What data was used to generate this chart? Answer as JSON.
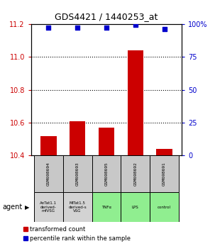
{
  "title": "GDS4421 / 1440253_at",
  "samples": [
    "GSM698694",
    "GSM698693",
    "GSM698695",
    "GSM698692",
    "GSM698691"
  ],
  "agents": [
    "AnTat1.1\nderived-\nmfVSG",
    "MiTat1.5\nderived-s\nVSG",
    "TNFα",
    "LPS",
    "control"
  ],
  "agent_colors": [
    "#d3d3d3",
    "#d3d3d3",
    "#7cfc00",
    "#7cfc00",
    "#7cfc00"
  ],
  "bar_values": [
    10.52,
    10.61,
    10.57,
    11.04,
    10.44
  ],
  "bar_bottom": 10.4,
  "dot_y_right": [
    97,
    97,
    97,
    99,
    96
  ],
  "ylim_left": [
    10.4,
    11.2
  ],
  "ylim_right": [
    0,
    100
  ],
  "yticks_left": [
    10.4,
    10.6,
    10.8,
    11.0,
    11.2
  ],
  "yticks_right": [
    0,
    25,
    50,
    75,
    100
  ],
  "bar_color": "#cc0000",
  "dot_color": "#0000cc",
  "title_color": "#000000",
  "left_tick_color": "#cc0000",
  "right_tick_color": "#0000cc",
  "legend_red_label": "transformed count",
  "legend_blue_label": "percentile rank within the sample",
  "agent_label": "agent",
  "grid_yticks": [
    10.6,
    10.8,
    11.0
  ],
  "agent_gray": "#d3d3d3",
  "agent_green": "#90ee90",
  "sample_gray": "#c8c8c8"
}
